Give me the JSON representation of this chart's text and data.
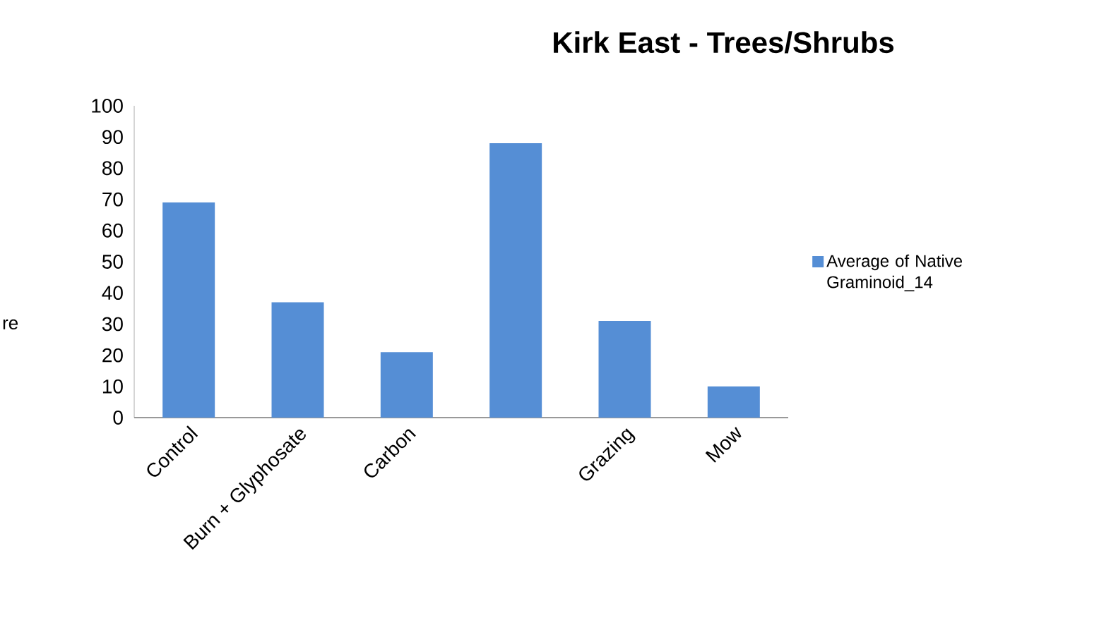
{
  "chart_data": {
    "type": "bar",
    "title": "Kirk East - Trees/Shrubs",
    "ylabel": "re",
    "categories": [
      "Control",
      "Burn + Glyphosate",
      "Carbon",
      null,
      "Grazing",
      "Mow"
    ],
    "series": [
      {
        "name": "Average of Native Graminoid_14",
        "color": "#558ed5",
        "values": [
          69,
          37,
          21,
          88,
          31,
          10
        ]
      }
    ],
    "ylim": [
      0,
      100
    ],
    "yticks": [
      0,
      10,
      20,
      30,
      40,
      50,
      60,
      70,
      80,
      90,
      100
    ],
    "grid": false,
    "legend": "right"
  }
}
